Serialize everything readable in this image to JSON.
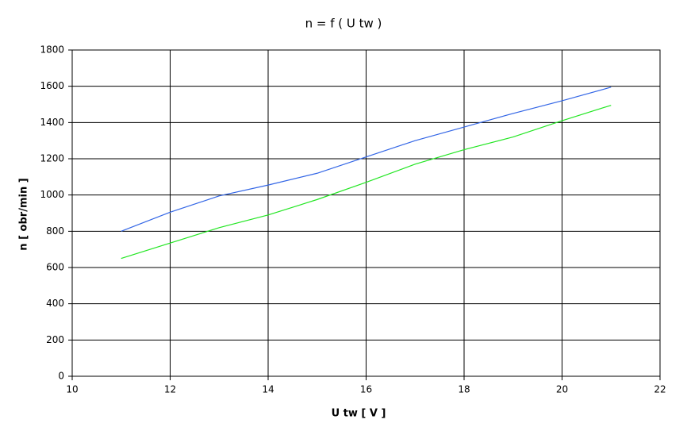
{
  "chart_data": {
    "type": "line",
    "title": "n = f ( U tw )",
    "x_label": "U tw [ V ]",
    "y_label": "n [ obr/min ]",
    "x": [
      11,
      12,
      13,
      14,
      15,
      16,
      17,
      18,
      19,
      20,
      21
    ],
    "series": [
      {
        "color": "#3366e6",
        "values": [
          800,
          905,
          995,
          1055,
          1120,
          1210,
          1300,
          1375,
          1450,
          1520,
          1595
        ]
      },
      {
        "color": "#22e622",
        "values": [
          650,
          735,
          820,
          890,
          975,
          1070,
          1170,
          1250,
          1320,
          1410,
          1495
        ]
      }
    ],
    "xlim": [
      10,
      22
    ],
    "xticks": [
      10,
      12,
      14,
      16,
      18,
      20,
      22
    ],
    "ylim": [
      0,
      1800
    ],
    "yticks": [
      0,
      200,
      400,
      600,
      800,
      1000,
      1200,
      1400,
      1600,
      1800
    ],
    "grid": true
  }
}
